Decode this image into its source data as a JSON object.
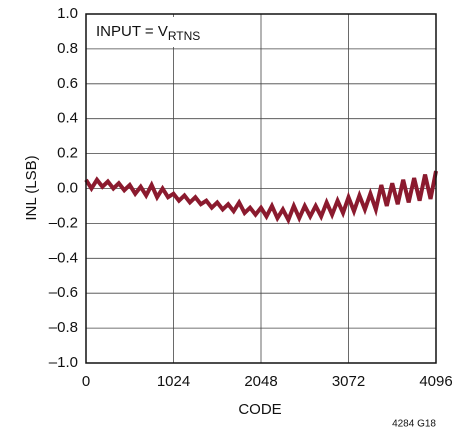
{
  "chart_data": {
    "type": "line",
    "x_label": "CODE",
    "y_label": "INL (LSB)",
    "annotation": {
      "text": "INPUT = V",
      "subscript": "RTNS"
    },
    "footnote": "4284 G18",
    "x": [
      0,
      64,
      128,
      192,
      256,
      320,
      384,
      448,
      512,
      576,
      640,
      704,
      768,
      832,
      896,
      960,
      1024,
      1088,
      1152,
      1216,
      1280,
      1344,
      1408,
      1472,
      1536,
      1600,
      1664,
      1728,
      1792,
      1856,
      1920,
      1984,
      2048,
      2112,
      2176,
      2240,
      2304,
      2368,
      2432,
      2496,
      2560,
      2624,
      2688,
      2752,
      2816,
      2880,
      2944,
      3008,
      3072,
      3136,
      3200,
      3264,
      3328,
      3392,
      3456,
      3520,
      3584,
      3648,
      3712,
      3776,
      3840,
      3904,
      3968,
      4032,
      4096
    ],
    "series": [
      {
        "color": "#8b1a2e",
        "values": [
          0.05,
          0.0,
          0.05,
          0.01,
          0.04,
          0.0,
          0.03,
          -0.01,
          0.02,
          -0.03,
          0.01,
          -0.04,
          0.02,
          -0.05,
          0.0,
          -0.05,
          -0.03,
          -0.07,
          -0.04,
          -0.08,
          -0.05,
          -0.09,
          -0.07,
          -0.11,
          -0.08,
          -0.12,
          -0.09,
          -0.13,
          -0.08,
          -0.14,
          -0.11,
          -0.15,
          -0.11,
          -0.16,
          -0.1,
          -0.17,
          -0.12,
          -0.18,
          -0.1,
          -0.17,
          -0.1,
          -0.16,
          -0.1,
          -0.16,
          -0.08,
          -0.15,
          -0.07,
          -0.14,
          -0.05,
          -0.13,
          -0.04,
          -0.12,
          -0.03,
          -0.12,
          0.02,
          -0.1,
          0.03,
          -0.09,
          0.05,
          -0.08,
          0.06,
          -0.07,
          0.08,
          -0.06,
          0.1
        ]
      }
    ],
    "xlim": [
      0,
      4096
    ],
    "xticks": [
      0,
      1024,
      2048,
      3072,
      4096
    ],
    "ylim": [
      -1,
      1
    ],
    "yticks": [
      {
        "value": -1,
        "label": "–1.0"
      },
      {
        "value": -0.8,
        "label": "–0.8"
      },
      {
        "value": -0.6,
        "label": "–0.6"
      },
      {
        "value": -0.4,
        "label": "–0.4"
      },
      {
        "value": -0.2,
        "label": "–0.2"
      },
      {
        "value": 0,
        "label": "0.0"
      },
      0.2,
      0.4,
      0.6,
      0.8,
      {
        "value": 1,
        "label": "1.0"
      }
    ],
    "grid": true
  }
}
